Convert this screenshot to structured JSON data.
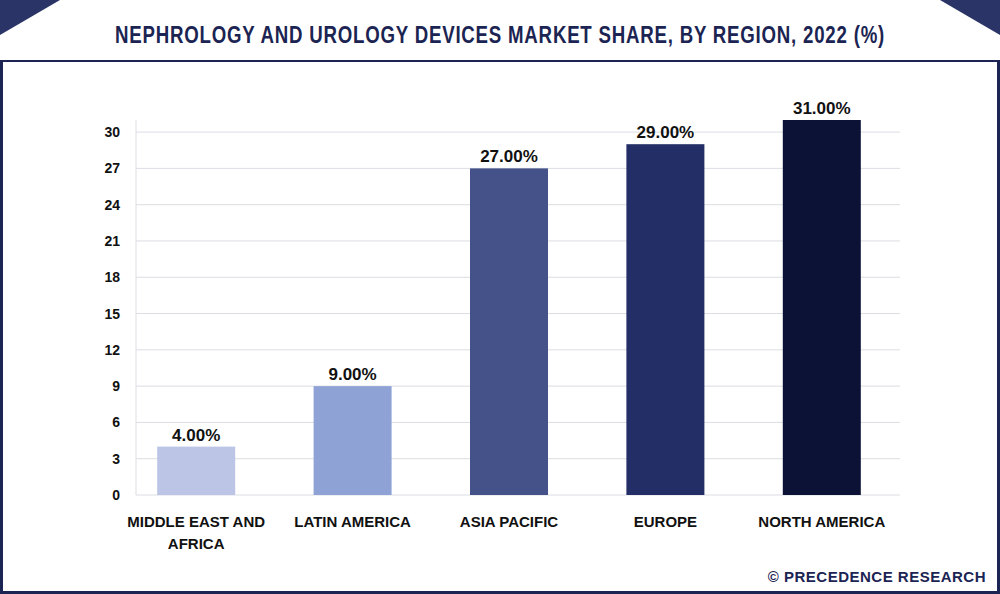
{
  "chart_data": {
    "type": "bar",
    "title": "NEPHROLOGY AND UROLOGY DEVICES MARKET SHARE, BY REGION, 2022 (%)",
    "source": "© PRECEDENCE RESEARCH",
    "categories": [
      "MIDDLE EAST AND AFRICA",
      "LATIN AMERICA",
      "ASIA PACIFIC",
      "EUROPE",
      "NORTH AMERICA"
    ],
    "values": [
      4,
      9,
      27,
      29,
      31
    ],
    "value_labels": [
      "4.00%",
      "9.00%",
      "27.00%",
      "29.00%",
      "31.00%"
    ],
    "colors": [
      "#bcc5e6",
      "#8fa2d6",
      "#45528a",
      "#232d66",
      "#0c1236"
    ],
    "ylim": [
      0,
      31
    ],
    "yticks": [
      0,
      3,
      6,
      9,
      12,
      15,
      18,
      21,
      24,
      27,
      30
    ],
    "grid": true,
    "data_labels": true
  }
}
